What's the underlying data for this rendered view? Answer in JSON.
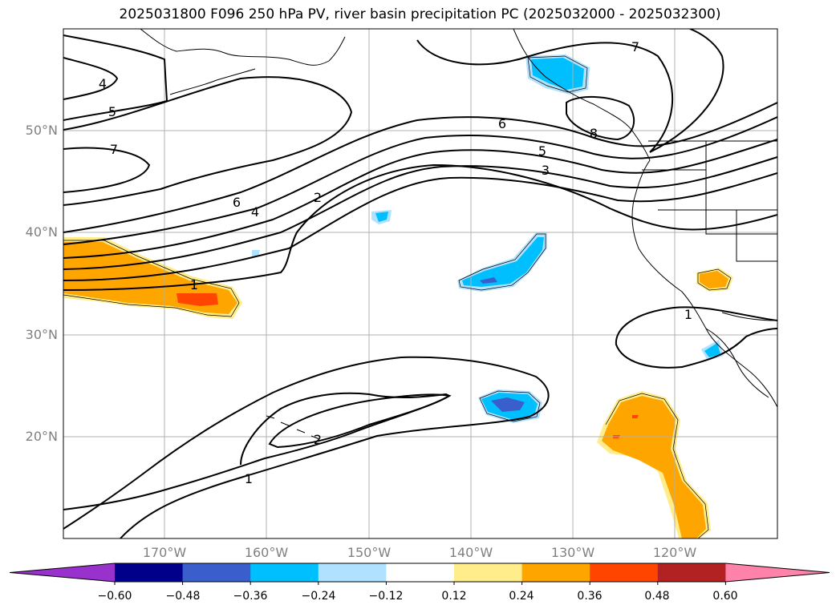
{
  "title": "2025031800 F096 250 hPa PV, river basin precipitation PC (2025032000 - 2025032300)",
  "lat_labels": [
    "50°N",
    "40°N",
    "30°N",
    "20°N"
  ],
  "lon_labels": [
    "170°W",
    "160°W",
    "150°W",
    "140°W",
    "130°W",
    "120°W"
  ],
  "contour_labels": [
    "4",
    "5",
    "7",
    "6",
    "4",
    "2",
    "1",
    "6",
    "5",
    "3",
    "7",
    "8",
    "1",
    "2",
    "1"
  ],
  "colorbar": {
    "ticks": [
      "−0.60",
      "−0.48",
      "−0.36",
      "−0.24",
      "−0.12",
      "0.12",
      "0.24",
      "0.36",
      "0.48",
      "0.60"
    ],
    "colors": [
      "#9932cc",
      "#00008b",
      "#3a5fcd",
      "#00bfff",
      "#b0e2ff",
      "#ffffff",
      "#ffec8b",
      "#ffa500",
      "#ff4500",
      "#b22222",
      "#ff82ab"
    ]
  },
  "fill_colors": {
    "neg_light": "#b0e2ff",
    "neg_mid": "#00bfff",
    "neg_strong": "#3a5fcd",
    "pos_light": "#ffec8b",
    "pos_mid": "#ffa500",
    "pos_strong": "#ff4500"
  }
}
